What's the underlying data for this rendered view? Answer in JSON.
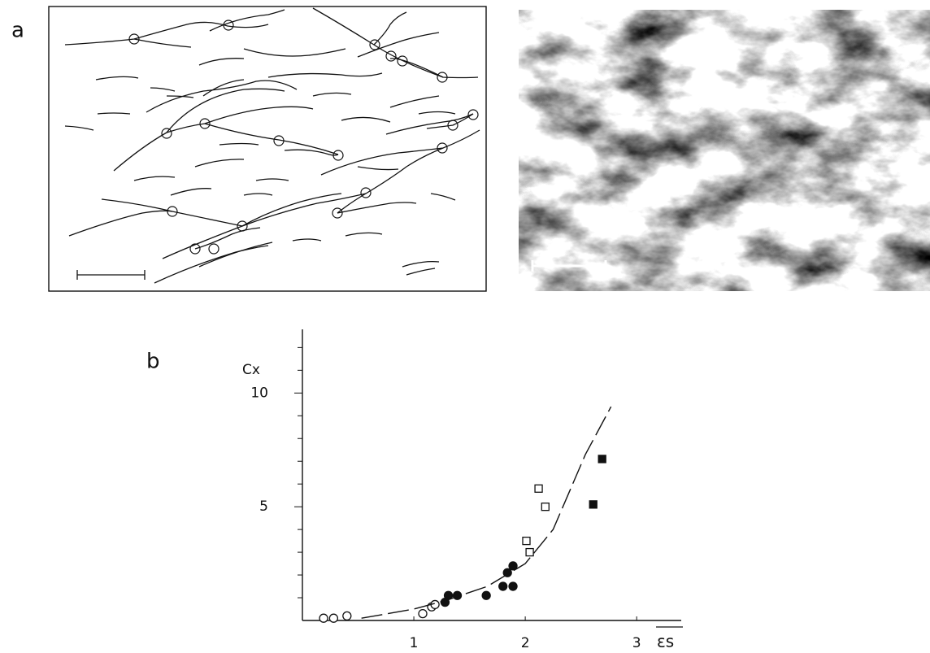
{
  "panel_labels": [
    "a",
    "b"
  ],
  "chart_data": {
    "type": "scatter",
    "x_label": "εs",
    "y_label": "Cx",
    "xlim": [
      0,
      3.4
    ],
    "ylim": [
      0,
      12.8
    ],
    "xticks": [
      1,
      2,
      3
    ],
    "yticks": [
      5,
      10
    ],
    "y_minor_ticks": [
      1,
      2,
      3,
      4,
      6,
      7,
      8,
      9,
      11,
      12
    ],
    "series": [
      {
        "type": "scatter",
        "marker": "circle",
        "color": "#111",
        "filled": false,
        "x": [
          0.19,
          0.28,
          0.4,
          1.08,
          1.16,
          1.19
        ],
        "y": [
          0.1,
          0.1,
          0.2,
          0.3,
          0.6,
          0.7
        ]
      },
      {
        "type": "scatter",
        "marker": "circle",
        "color": "#111",
        "filled": true,
        "x": [
          1.28,
          1.31,
          1.39,
          1.65,
          1.8,
          1.84,
          1.89,
          1.89
        ],
        "y": [
          0.8,
          1.1,
          1.1,
          1.1,
          1.5,
          2.1,
          2.4,
          1.5
        ]
      },
      {
        "type": "scatter",
        "marker": "square",
        "color": "#111",
        "filled": false,
        "x": [
          2.12,
          2.18,
          2.01,
          2.04
        ],
        "y": [
          5.8,
          5.0,
          3.5,
          3.0
        ]
      },
      {
        "type": "scatter",
        "marker": "square",
        "color": "#111",
        "filled": true,
        "x": [
          2.69,
          2.61
        ],
        "y": [
          7.1,
          5.1
        ]
      },
      {
        "type": "line",
        "dashed": true,
        "color": "#111",
        "x": [
          0.53,
          1.0,
          1.3,
          1.66,
          2.0,
          2.25,
          2.54,
          2.77
        ],
        "y": [
          0.1,
          0.5,
          0.9,
          1.5,
          2.5,
          4.0,
          7.3,
          9.4
        ]
      }
    ]
  }
}
